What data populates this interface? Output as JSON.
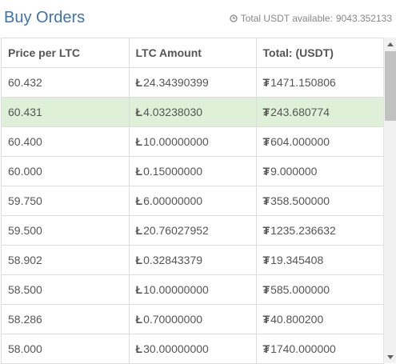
{
  "header": {
    "title": "Buy Orders",
    "available_label": "Total USDT available:",
    "available_value": "9043.352133",
    "available_icon": "clock-icon"
  },
  "table": {
    "columns": [
      "Price per LTC",
      "LTC Amount",
      "Total: (USDT)"
    ],
    "ltc_symbol": "Ł",
    "usdt_symbol": "₮",
    "highlight_row_color": "#dff0d8",
    "rows": [
      {
        "price": "60.432",
        "amount": "24.34390399",
        "total": "1471.150806"
      },
      {
        "price": "60.431",
        "amount": "4.03238030",
        "total": "243.680774"
      },
      {
        "price": "60.400",
        "amount": "10.00000000",
        "total": "604.000000"
      },
      {
        "price": "60.000",
        "amount": "0.15000000",
        "total": "9.000000"
      },
      {
        "price": "59.750",
        "amount": "6.00000000",
        "total": "358.500000"
      },
      {
        "price": "59.500",
        "amount": "20.76027952",
        "total": "1235.236632"
      },
      {
        "price": "58.902",
        "amount": "0.32843379",
        "total": "19.345408"
      },
      {
        "price": "58.500",
        "amount": "10.00000000",
        "total": "585.000000"
      },
      {
        "price": "58.286",
        "amount": "0.70000000",
        "total": "40.800200"
      },
      {
        "price": "58.000",
        "amount": "30.00000000",
        "total": "1740.000000"
      }
    ]
  }
}
